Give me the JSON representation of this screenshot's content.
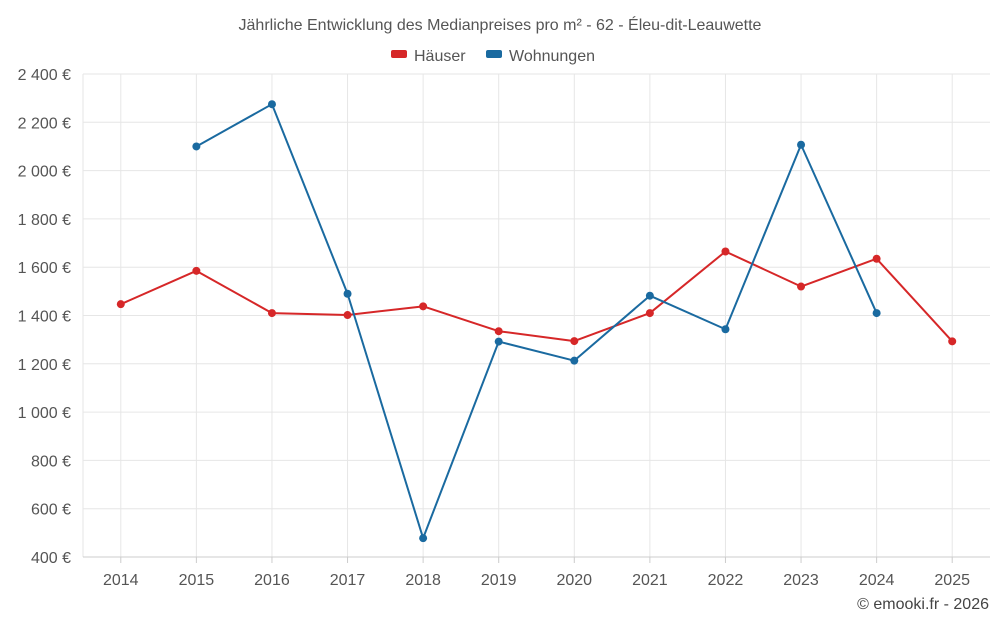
{
  "chart_data": {
    "type": "line",
    "title": "Jährliche Entwicklung des Medianpreises pro m² - 62 - Éleu-dit-Leauwette",
    "categories": [
      "2014",
      "2015",
      "2016",
      "2017",
      "2018",
      "2019",
      "2020",
      "2021",
      "2022",
      "2023",
      "2024",
      "2025"
    ],
    "series": [
      {
        "name": "Häuser",
        "color": "#d62728",
        "values": [
          1447,
          1585,
          1410,
          1402,
          1438,
          1335,
          1294,
          1410,
          1665,
          1520,
          1635,
          1293
        ]
      },
      {
        "name": "Wohnungen",
        "color": "#1a6aa0",
        "values": [
          null,
          2100,
          2275,
          1490,
          478,
          1292,
          1213,
          1482,
          1343,
          2107,
          1410,
          null
        ]
      }
    ],
    "yticks": [
      "2 400 €",
      "2 200 €",
      "2 000 €",
      "1 800 €",
      "1 600 €",
      "1 400 €",
      "1 200 €",
      "1 000 €",
      "800 €",
      "600 €",
      "400 €"
    ],
    "ylim": [
      400,
      2400
    ],
    "xlabel": "",
    "ylabel": "",
    "legend_position": "top-center",
    "grid": true
  },
  "credit": "© emooki.fr - 2026"
}
